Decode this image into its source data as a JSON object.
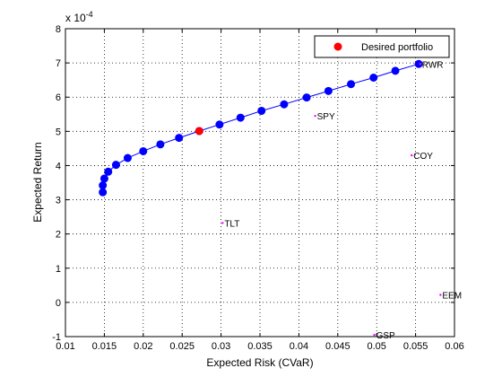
{
  "chart_data": {
    "type": "scatter",
    "xlabel": "Expected Risk (CVaR)",
    "ylabel": "Expected Return",
    "y_exponent_label": "x 10",
    "y_exponent_power": "-4",
    "xlim": [
      0.01,
      0.06
    ],
    "ylim": [
      -1,
      8
    ],
    "x_ticks": [
      0.01,
      0.015,
      0.02,
      0.025,
      0.03,
      0.035,
      0.04,
      0.045,
      0.05,
      0.055,
      0.06
    ],
    "x_tick_labels": [
      "0.01",
      "0.015",
      "0.02",
      "0.025",
      "0.03",
      "0.035",
      "0.04",
      "0.045",
      "0.05",
      "0.055",
      "0.06"
    ],
    "y_ticks": [
      -1,
      0,
      1,
      2,
      3,
      4,
      5,
      6,
      7,
      8
    ],
    "y_tick_labels": [
      "-1",
      "0",
      "1",
      "2",
      "3",
      "4",
      "5",
      "6",
      "7",
      "8"
    ],
    "grid": true,
    "legend_position": "top-right",
    "legend": [
      {
        "label": "Desired portfolio",
        "color": "#ff0000",
        "marker": "filled-circle"
      }
    ],
    "frontier": {
      "color": "#0000ff",
      "points": [
        {
          "x": 0.0148,
          "y": 3.22
        },
        {
          "x": 0.0148,
          "y": 3.42
        },
        {
          "x": 0.015,
          "y": 3.62
        },
        {
          "x": 0.0155,
          "y": 3.82
        },
        {
          "x": 0.0165,
          "y": 4.02
        },
        {
          "x": 0.018,
          "y": 4.22
        },
        {
          "x": 0.02,
          "y": 4.42
        },
        {
          "x": 0.0222,
          "y": 4.62
        },
        {
          "x": 0.0246,
          "y": 4.81
        },
        {
          "x": 0.0272,
          "y": 5.01
        },
        {
          "x": 0.0298,
          "y": 5.2
        },
        {
          "x": 0.0325,
          "y": 5.4
        },
        {
          "x": 0.0352,
          "y": 5.6
        },
        {
          "x": 0.0381,
          "y": 5.79
        },
        {
          "x": 0.041,
          "y": 5.99
        },
        {
          "x": 0.0438,
          "y": 6.18
        },
        {
          "x": 0.0467,
          "y": 6.38
        },
        {
          "x": 0.0496,
          "y": 6.57
        },
        {
          "x": 0.0524,
          "y": 6.77
        },
        {
          "x": 0.0554,
          "y": 6.97
        }
      ]
    },
    "desired_portfolio": {
      "x": 0.0272,
      "y": 5.01,
      "color": "#ff0000"
    },
    "assets": [
      {
        "label": "RWR",
        "x": 0.0556,
        "y": 6.97
      },
      {
        "label": "SPY",
        "x": 0.0421,
        "y": 5.45
      },
      {
        "label": "COY",
        "x": 0.0545,
        "y": 4.3
      },
      {
        "label": "TLT",
        "x": 0.0302,
        "y": 2.32
      },
      {
        "label": "EEM",
        "x": 0.0582,
        "y": 0.22
      },
      {
        "label": "GSP",
        "x": 0.0497,
        "y": -0.95
      }
    ],
    "asset_marker_color": "#ff00ff"
  }
}
